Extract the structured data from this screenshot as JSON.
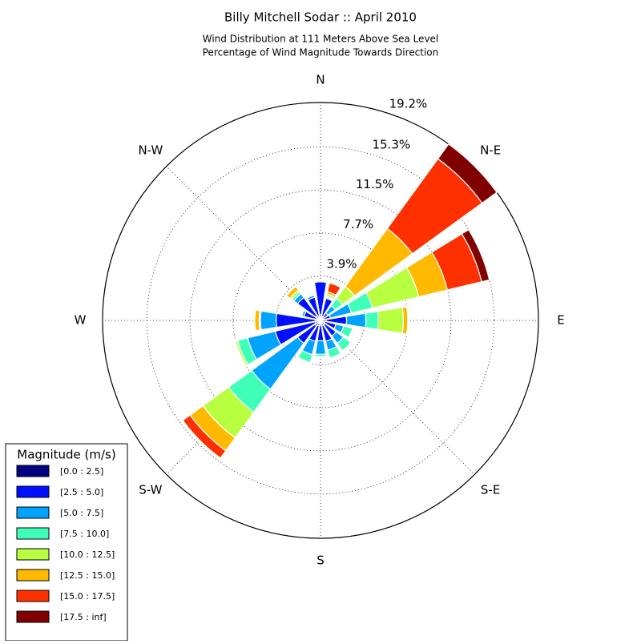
{
  "chart_data": {
    "type": "windrose",
    "title": "Billy Mitchell Sodar :: April 2010",
    "subtitle": [
      "Wind Distribution at 111 Meters Above Sea Level",
      "Percentage of Wind Magnitude Towards Direction"
    ],
    "categories": [
      "N",
      null,
      "N-E",
      null,
      "E",
      null,
      "S-E",
      null,
      "S",
      null,
      "S-W",
      null,
      "W",
      null,
      "N-W",
      null
    ],
    "rlim": [
      0,
      19.2
    ],
    "rticks": [
      {
        "value": 3.9,
        "label": "3.9%"
      },
      {
        "value": 7.7,
        "label": "7.7%"
      },
      {
        "value": 11.5,
        "label": "11.5%"
      },
      {
        "value": 15.3,
        "label": "15.3%"
      },
      {
        "value": 19.2,
        "label": "19.2%"
      }
    ],
    "grid": true,
    "legend_title": "Magnitude (m/s)",
    "legend": "lower left",
    "series": [
      {
        "name": "[0.0 : 2.5]",
        "color": "#000080",
        "values": [
          0.5,
          0.4,
          0.2,
          0.3,
          0.5,
          0.4,
          0.5,
          0.5,
          0.4,
          0.5,
          0.6,
          0.5,
          0.4,
          0.4,
          0.5,
          0.4
        ]
      },
      {
        "name": "[2.5 : 5.0]",
        "color": "#0010ff",
        "values": [
          2.9,
          1.6,
          0.6,
          0.6,
          1.8,
          1.0,
          1.2,
          1.4,
          1.4,
          1.4,
          1.9,
          3.6,
          3.5,
          1.1,
          2.0,
          1.7
        ]
      },
      {
        "name": "[5.0 : 7.5]",
        "color": "#00a4ff",
        "values": [
          0,
          0.1,
          0.8,
          1.9,
          1.7,
          0.7,
          0.8,
          0.8,
          1.2,
          1.2,
          5.0,
          2.5,
          1.4,
          0.2,
          0.4,
          0.2
        ]
      },
      {
        "name": "[7.5 : 10.0]",
        "color": "#40ffb8",
        "values": [
          0,
          0.1,
          0.8,
          1.9,
          1.1,
          0.8,
          0.8,
          0.7,
          0.2,
          0.7,
          2.5,
          0.9,
          0,
          0.1,
          0.2,
          0
        ]
      },
      {
        "name": "[10.0 : 12.5]",
        "color": "#b8ff40",
        "values": [
          0,
          0.2,
          1.3,
          4.2,
          2.2,
          0,
          0.1,
          0.1,
          0.05,
          0.1,
          2.8,
          0.2,
          0.1,
          0,
          0.2,
          0
        ]
      },
      {
        "name": "[12.5 : 15.0]",
        "color": "#ffb900",
        "values": [
          0,
          0.2,
          6.3,
          2.6,
          0.4,
          0,
          0,
          0,
          0,
          0,
          1.4,
          0,
          0.4,
          0,
          0.4,
          0
        ]
      },
      {
        "name": "[15.0 : 17.5]",
        "color": "#ff3000",
        "values": [
          0,
          0.8,
          7.6,
          3.1,
          0,
          0,
          0,
          0,
          0,
          0,
          0.8,
          0,
          0,
          0,
          0,
          0
        ]
      },
      {
        "name": "[17.5 : inf]",
        "color": "#800000",
        "values": [
          0,
          0,
          1.6,
          0.7,
          0,
          0,
          0,
          0,
          0,
          0,
          0,
          0,
          0,
          0,
          0,
          0
        ]
      }
    ]
  }
}
